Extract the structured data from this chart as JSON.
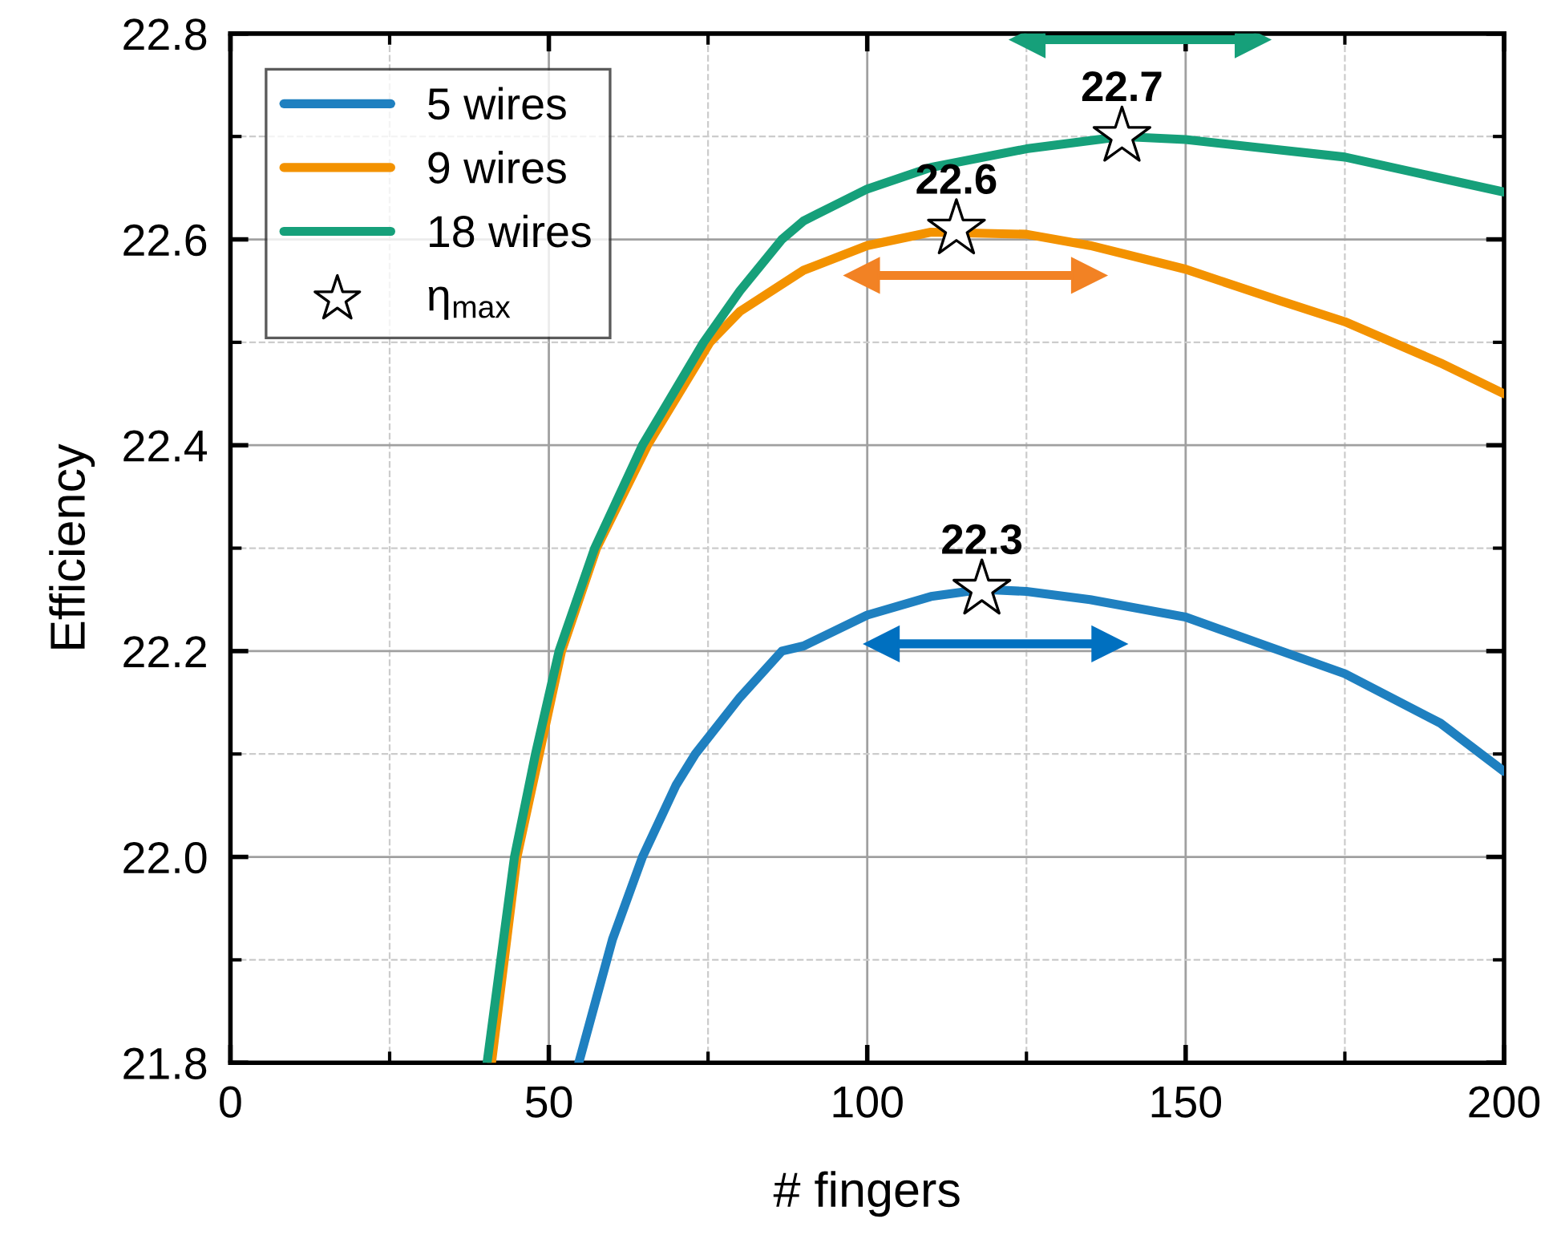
{
  "chart_data": {
    "type": "line",
    "xlabel": "# fingers",
    "ylabel": "Efficiency",
    "xlim": [
      0,
      200
    ],
    "xticks": [
      0,
      50,
      100,
      150,
      200
    ],
    "ylim": [
      21.8,
      22.8
    ],
    "yticks": [
      {
        "value": 21.8,
        "label": "21.8"
      },
      {
        "value": 22.0,
        "label": "22.0"
      },
      {
        "value": 22.2,
        "label": "22.2"
      },
      {
        "value": 22.4,
        "label": "22.4"
      },
      {
        "value": 22.6,
        "label": "22.6"
      },
      {
        "value": 22.8,
        "label": "22.8"
      }
    ],
    "grid": true,
    "legend": "top left",
    "series": [
      {
        "name": "5 wires",
        "color": "#1f80c0",
        "x": [
          54.7,
          60,
          64.7,
          70,
          73,
          80,
          86.6,
          90,
          100,
          110,
          118,
          125,
          135,
          150,
          165,
          175,
          190,
          200
        ],
        "values": [
          21.8,
          21.92,
          22.0,
          22.07,
          22.1,
          22.155,
          22.2,
          22.205,
          22.235,
          22.253,
          22.26,
          22.258,
          22.25,
          22.233,
          22.2,
          22.178,
          22.13,
          22.083
        ]
      },
      {
        "name": "9 wires",
        "color": "#f39200",
        "x": [
          41,
          45,
          48.5,
          52,
          57.5,
          65.5,
          75.3,
          80,
          90,
          100,
          110,
          125,
          135,
          150,
          165,
          175,
          190,
          200
        ],
        "values": [
          21.8,
          22.0,
          22.1,
          22.2,
          22.3,
          22.4,
          22.5,
          22.53,
          22.57,
          22.594,
          22.607,
          22.605,
          22.594,
          22.571,
          22.54,
          22.52,
          22.48,
          22.45
        ]
      },
      {
        "name": "18 wires",
        "color": "#16a07a",
        "x": [
          40.3,
          44.6,
          47.9,
          51.6,
          57.2,
          64.7,
          74.3,
          80,
          86.6,
          90,
          100,
          110,
          125,
          140,
          150,
          175,
          200
        ],
        "values": [
          21.8,
          22.0,
          22.1,
          22.2,
          22.3,
          22.4,
          22.5,
          22.55,
          22.6,
          22.618,
          22.649,
          22.67,
          22.688,
          22.7,
          22.697,
          22.68,
          22.646
        ]
      },
      {
        "name": "η$_{max}$",
        "type": "scatter",
        "marker": "star",
        "color": "#ffffff",
        "x": [
          118,
          114,
          140
        ],
        "values": [
          22.26,
          22.61,
          22.7
        ]
      },
      {
        "color": "#0070c0",
        "marker": "triangle",
        "x": [
          102.3,
          138
        ],
        "values": [
          22.207,
          22.207
        ]
      },
      {
        "color": "#f28224",
        "marker": "triangle",
        "x": [
          99.2,
          134.8
        ],
        "values": [
          22.565,
          22.565
        ]
      },
      {
        "color": "#16a07a",
        "marker": "triangle",
        "x": [
          125.2,
          160.5
        ],
        "values": [
          22.794,
          22.794
        ]
      }
    ],
    "annotations": [
      {
        "text": "22.3",
        "x": 118,
        "y": 22.26
      },
      {
        "text": "22.6",
        "x": 114,
        "y": 22.61
      },
      {
        "text": "22.7",
        "x": 140,
        "y": 22.7
      }
    ]
  }
}
